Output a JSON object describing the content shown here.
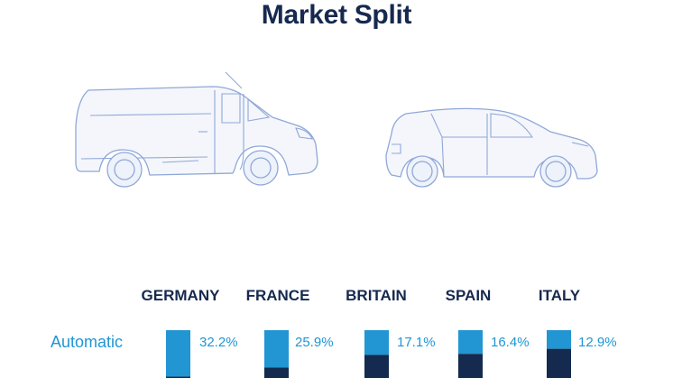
{
  "title": "Market Split",
  "row_label": "Automatic",
  "colors": {
    "title": "#16294f",
    "automatic": "#2196d3",
    "other": "#142a4f",
    "outline": "#8fa8d8"
  },
  "icons": [
    "van-icon",
    "suv-icon"
  ],
  "chart_data": {
    "type": "bar",
    "stacked": true,
    "categories": [
      "GERMANY",
      "FRANCE",
      "BRITAIN",
      "SPAIN",
      "ITALY"
    ],
    "series": [
      {
        "name": "Automatic",
        "values": [
          32.2,
          25.9,
          17.1,
          16.4,
          12.9
        ]
      }
    ],
    "labels": [
      "32.2%",
      "25.9%",
      "17.1%",
      "16.4%",
      "12.9%"
    ],
    "ylim": [
      0,
      100
    ]
  }
}
